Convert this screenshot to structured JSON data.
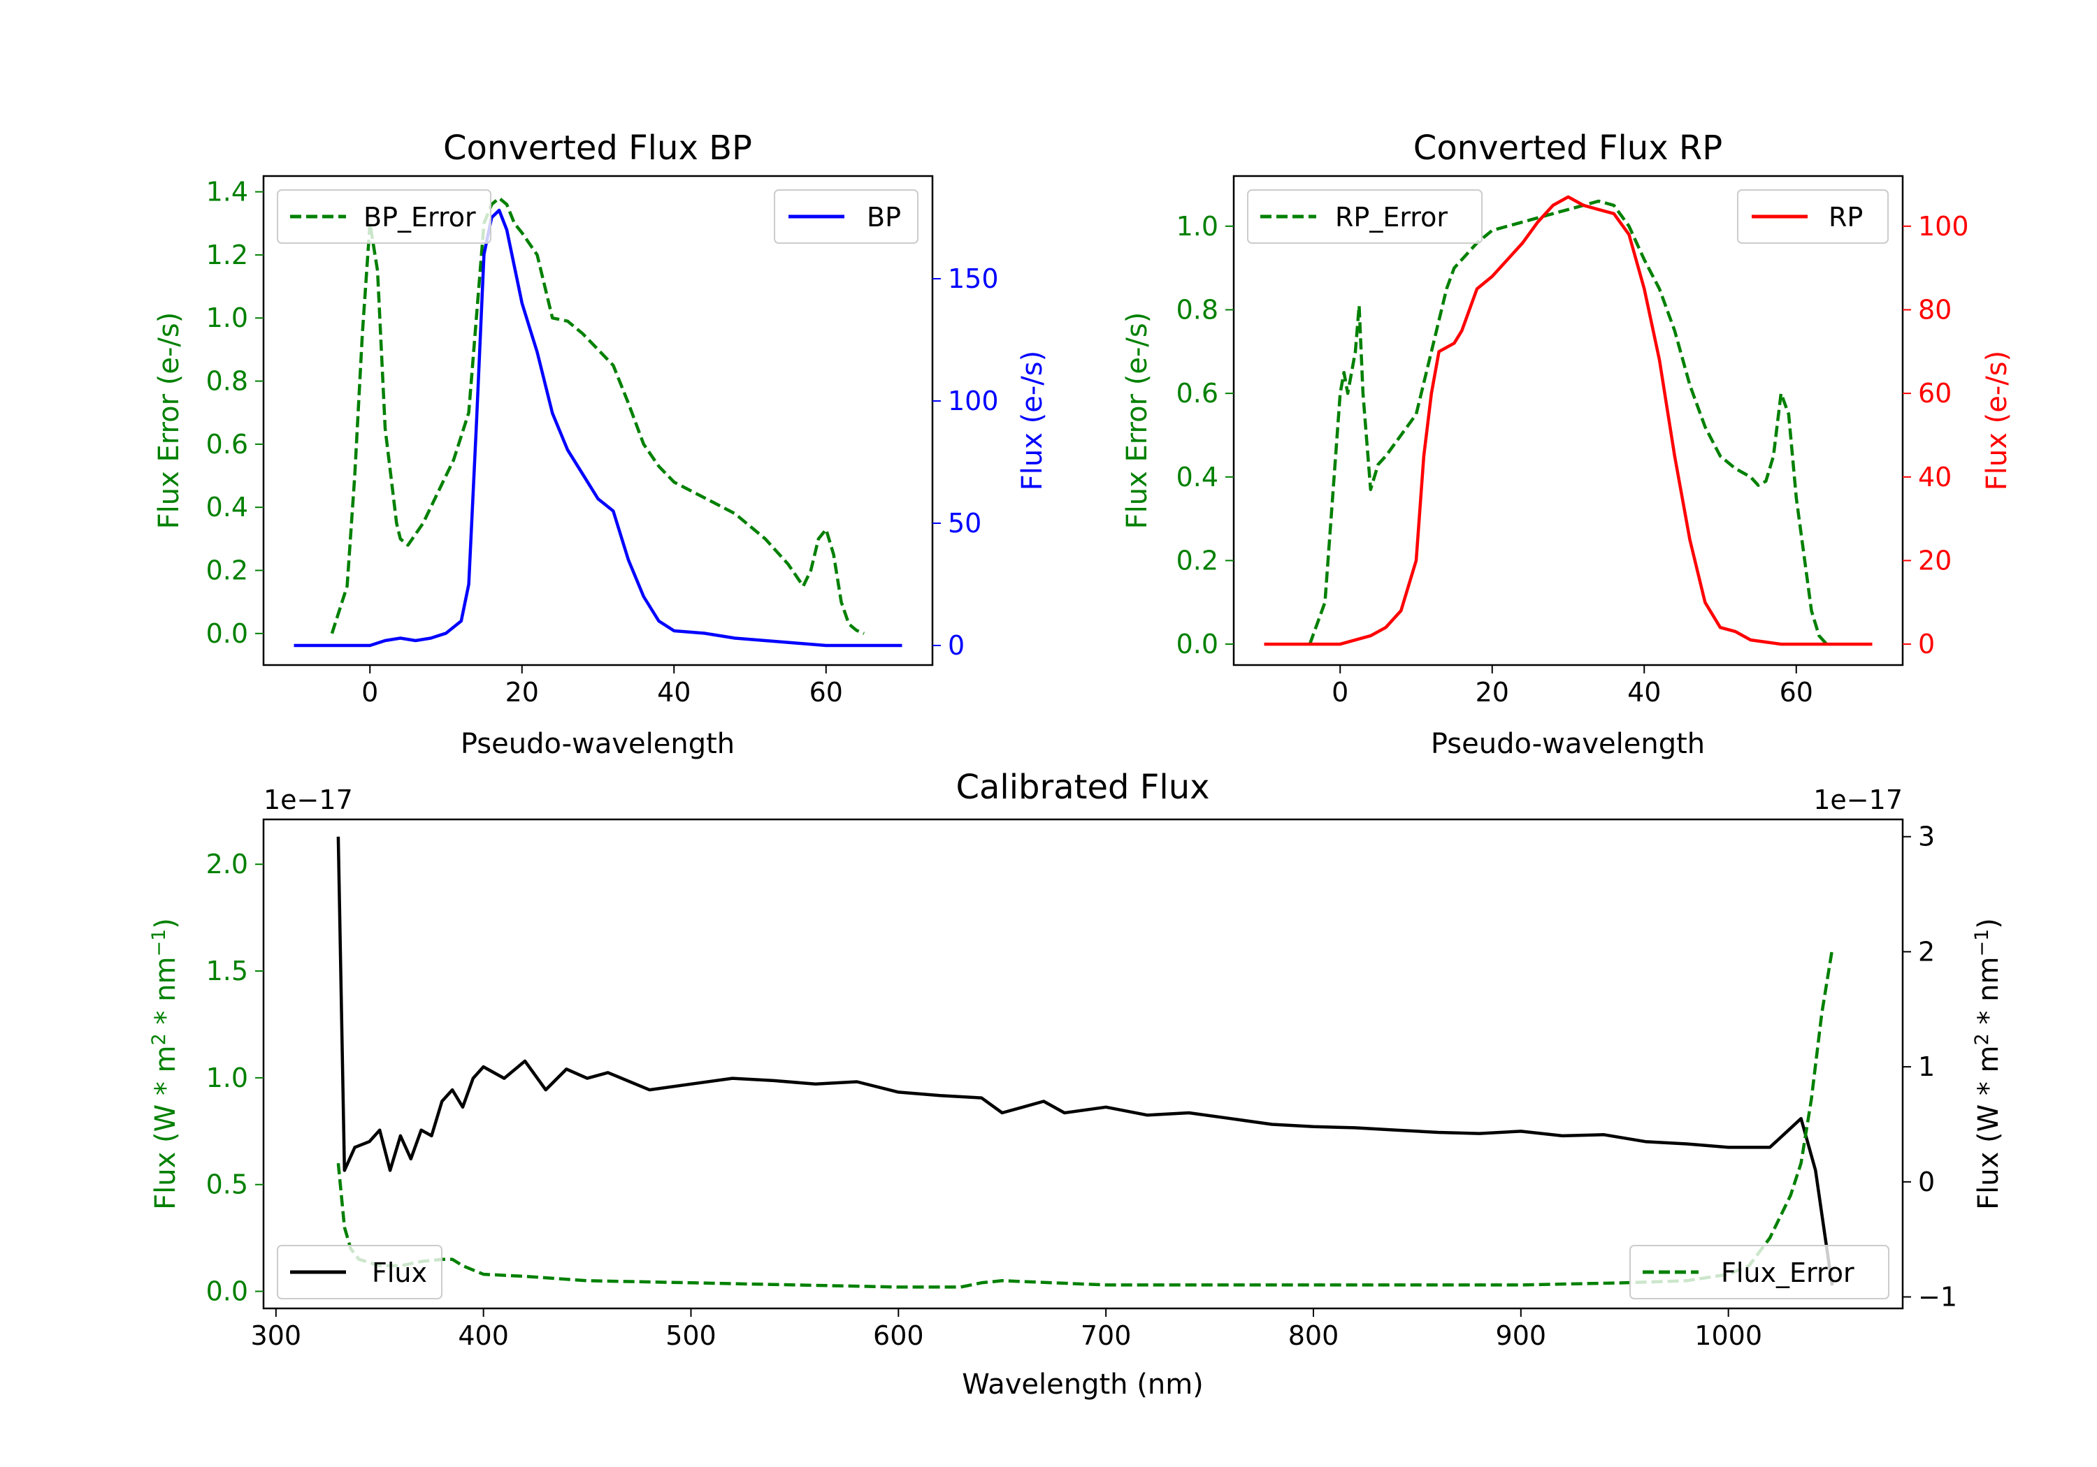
{
  "chart_data": [
    {
      "type": "line",
      "title": "Converted Flux BP",
      "xlabel": "Pseudo-wavelength",
      "ylabel_left": "Flux Error (e-/s)",
      "ylabel_right": "Flux (e-/s)",
      "xlim": [
        -14,
        74
      ],
      "ylim_left": [
        -0.1,
        1.45
      ],
      "ylim_right": [
        -8,
        192
      ],
      "xticks": [
        0,
        20,
        40,
        60
      ],
      "yticks_left": [
        "0.0",
        "0.2",
        "0.4",
        "0.6",
        "0.8",
        "1.0",
        "1.2",
        "1.4"
      ],
      "yticks_right": [
        "0",
        "50",
        "100",
        "150"
      ],
      "left_color": "#008000",
      "right_color": "#0000ff",
      "series": [
        {
          "name": "BP_Error",
          "axis": "left",
          "style": "dashed",
          "color": "#008000",
          "x": [
            -5,
            -3,
            -2,
            -1,
            0,
            1,
            2,
            3,
            3.5,
            4,
            5,
            7,
            9,
            11,
            13,
            14,
            15,
            16,
            17,
            18,
            19,
            20,
            22,
            24,
            26,
            28,
            30,
            32,
            34,
            36,
            38,
            40,
            44,
            48,
            52,
            55,
            57,
            58,
            59,
            60,
            61,
            62,
            63,
            64,
            65
          ],
          "y": [
            0,
            0.15,
            0.5,
            0.95,
            1.3,
            1.15,
            0.65,
            0.45,
            0.35,
            0.3,
            0.28,
            0.35,
            0.45,
            0.55,
            0.7,
            1.0,
            1.3,
            1.36,
            1.38,
            1.36,
            1.3,
            1.27,
            1.2,
            1.0,
            0.99,
            0.95,
            0.9,
            0.85,
            0.73,
            0.6,
            0.53,
            0.48,
            0.43,
            0.38,
            0.3,
            0.22,
            0.15,
            0.2,
            0.3,
            0.33,
            0.25,
            0.1,
            0.03,
            0.01,
            0
          ]
        },
        {
          "name": "BP",
          "axis": "right",
          "style": "solid",
          "color": "#0000ff",
          "x": [
            -10,
            -5,
            0,
            2,
            4,
            6,
            8,
            10,
            12,
            13,
            14,
            15,
            16,
            17,
            18,
            19,
            20,
            21,
            22,
            24,
            26,
            28,
            30,
            32,
            34,
            36,
            38,
            40,
            44,
            48,
            52,
            56,
            60,
            65,
            70
          ],
          "y": [
            0,
            0,
            0,
            2,
            3,
            2,
            3,
            5,
            10,
            25,
            90,
            160,
            175,
            178,
            170,
            155,
            140,
            130,
            120,
            95,
            80,
            70,
            60,
            55,
            35,
            20,
            10,
            6,
            5,
            3,
            2,
            1,
            0,
            0,
            0
          ]
        }
      ],
      "legend": [
        {
          "label": "BP_Error",
          "position": "upper-left"
        },
        {
          "label": "BP",
          "position": "upper-right"
        }
      ]
    },
    {
      "type": "line",
      "title": "Converted Flux RP",
      "xlabel": "Pseudo-wavelength",
      "ylabel_left": "Flux Error (e-/s)",
      "ylabel_right": "Flux (e-/s)",
      "xlim": [
        -14,
        74
      ],
      "ylim_left": [
        -0.05,
        1.12
      ],
      "ylim_right": [
        -5,
        112
      ],
      "xticks": [
        0,
        20,
        40,
        60
      ],
      "yticks_left": [
        "0.0",
        "0.2",
        "0.4",
        "0.6",
        "0.8",
        "1.0"
      ],
      "yticks_right": [
        "0",
        "20",
        "40",
        "60",
        "80",
        "100"
      ],
      "left_color": "#008000",
      "right_color": "#ff0000",
      "series": [
        {
          "name": "RP_Error",
          "axis": "left",
          "style": "dashed",
          "color": "#008000",
          "x": [
            -4,
            -2,
            -1,
            0,
            0.5,
            1,
            2,
            2.5,
            3,
            4,
            5,
            6,
            8,
            10,
            12,
            14,
            15,
            16,
            18,
            20,
            22,
            24,
            26,
            28,
            30,
            32,
            34,
            36,
            38,
            40,
            42,
            44,
            46,
            48,
            50,
            52,
            54,
            55,
            56,
            57,
            58,
            59,
            60,
            62,
            63,
            64
          ],
          "y": [
            0,
            0.1,
            0.35,
            0.6,
            0.65,
            0.6,
            0.7,
            0.81,
            0.6,
            0.37,
            0.43,
            0.45,
            0.5,
            0.55,
            0.7,
            0.85,
            0.9,
            0.92,
            0.96,
            0.99,
            1.0,
            1.01,
            1.02,
            1.03,
            1.04,
            1.05,
            1.06,
            1.05,
            1.0,
            0.92,
            0.85,
            0.75,
            0.62,
            0.52,
            0.45,
            0.42,
            0.4,
            0.38,
            0.39,
            0.45,
            0.6,
            0.55,
            0.35,
            0.08,
            0.02,
            0
          ],
          "note": "sampled"
        },
        {
          "name": "RP",
          "axis": "right",
          "style": "solid",
          "color": "#ff0000",
          "x": [
            -10,
            -2,
            0,
            2,
            4,
            6,
            8,
            10,
            11,
            12,
            13,
            14,
            15,
            16,
            18,
            20,
            22,
            24,
            26,
            28,
            30,
            32,
            34,
            36,
            38,
            40,
            42,
            44,
            46,
            48,
            50,
            52,
            54,
            56,
            58,
            60,
            65,
            70
          ],
          "y": [
            0,
            0,
            0,
            1,
            2,
            4,
            8,
            20,
            45,
            60,
            70,
            71,
            72,
            75,
            85,
            88,
            92,
            96,
            101,
            105,
            107,
            105,
            104,
            103,
            98,
            85,
            68,
            45,
            25,
            10,
            4,
            3,
            1,
            0.5,
            0,
            0,
            0,
            0
          ]
        }
      ],
      "legend": [
        {
          "label": "RP_Error",
          "position": "upper-left"
        },
        {
          "label": "RP",
          "position": "upper-right"
        }
      ]
    },
    {
      "type": "line",
      "title": "Calibrated Flux",
      "xlabel": "Wavelength (nm)",
      "ylabel_left": "Flux (W * m$^2$ * nm$^{-1}$)",
      "ylabel_right": "Flux (W * m$^2$ * nm$^{-1}$)",
      "offset_left": "1e−17",
      "offset_right": "1e−17",
      "xlim": [
        294,
        1084
      ],
      "ylim_left": [
        -0.08,
        2.21
      ],
      "ylim_right": [
        -1.1,
        3.15
      ],
      "xticks": [
        300,
        400,
        500,
        600,
        700,
        800,
        900,
        1000
      ],
      "yticks_left": [
        "0.0",
        "0.5",
        "1.0",
        "1.5",
        "2.0"
      ],
      "yticks_right": [
        "−1",
        "0",
        "1",
        "2",
        "3"
      ],
      "left_color": "#008000",
      "right_color": "#000000",
      "series": [
        {
          "name": "Flux",
          "axis": "right",
          "style": "solid",
          "color": "#000000",
          "x": [
            330,
            333,
            338,
            345,
            350,
            355,
            360,
            365,
            370,
            375,
            380,
            385,
            390,
            395,
            400,
            410,
            420,
            430,
            440,
            450,
            460,
            480,
            500,
            520,
            540,
            560,
            580,
            600,
            620,
            640,
            650,
            660,
            670,
            680,
            700,
            720,
            740,
            760,
            780,
            800,
            820,
            840,
            860,
            880,
            900,
            920,
            940,
            960,
            980,
            1000,
            1020,
            1035,
            1042,
            1050
          ],
          "y": [
            3.0,
            0.1,
            0.3,
            0.35,
            0.45,
            0.1,
            0.4,
            0.2,
            0.45,
            0.4,
            0.7,
            0.8,
            0.65,
            0.9,
            1.0,
            0.9,
            1.05,
            0.8,
            0.98,
            0.9,
            0.95,
            0.8,
            0.85,
            0.9,
            0.88,
            0.85,
            0.87,
            0.78,
            0.75,
            0.73,
            0.6,
            0.65,
            0.7,
            0.6,
            0.65,
            0.58,
            0.6,
            0.55,
            0.5,
            0.48,
            0.47,
            0.45,
            0.43,
            0.42,
            0.44,
            0.4,
            0.41,
            0.35,
            0.33,
            0.3,
            0.3,
            0.55,
            0.1,
            -0.9
          ]
        },
        {
          "name": "Flux_Error",
          "axis": "left",
          "style": "dashed",
          "color": "#008000",
          "x": [
            330,
            333,
            336,
            340,
            350,
            360,
            370,
            380,
            385,
            390,
            400,
            420,
            450,
            500,
            600,
            630,
            640,
            650,
            700,
            800,
            900,
            950,
            980,
            1000,
            1010,
            1020,
            1030,
            1035,
            1040,
            1045,
            1050
          ],
          "y": [
            0.6,
            0.3,
            0.2,
            0.15,
            0.12,
            0.12,
            0.14,
            0.15,
            0.15,
            0.12,
            0.08,
            0.07,
            0.05,
            0.04,
            0.02,
            0.02,
            0.04,
            0.05,
            0.03,
            0.03,
            0.03,
            0.04,
            0.05,
            0.08,
            0.12,
            0.25,
            0.45,
            0.6,
            0.9,
            1.3,
            1.6
          ]
        }
      ],
      "legend": [
        {
          "label": "Flux",
          "position": "lower-left"
        },
        {
          "label": "Flux_Error",
          "position": "lower-right"
        }
      ]
    }
  ]
}
